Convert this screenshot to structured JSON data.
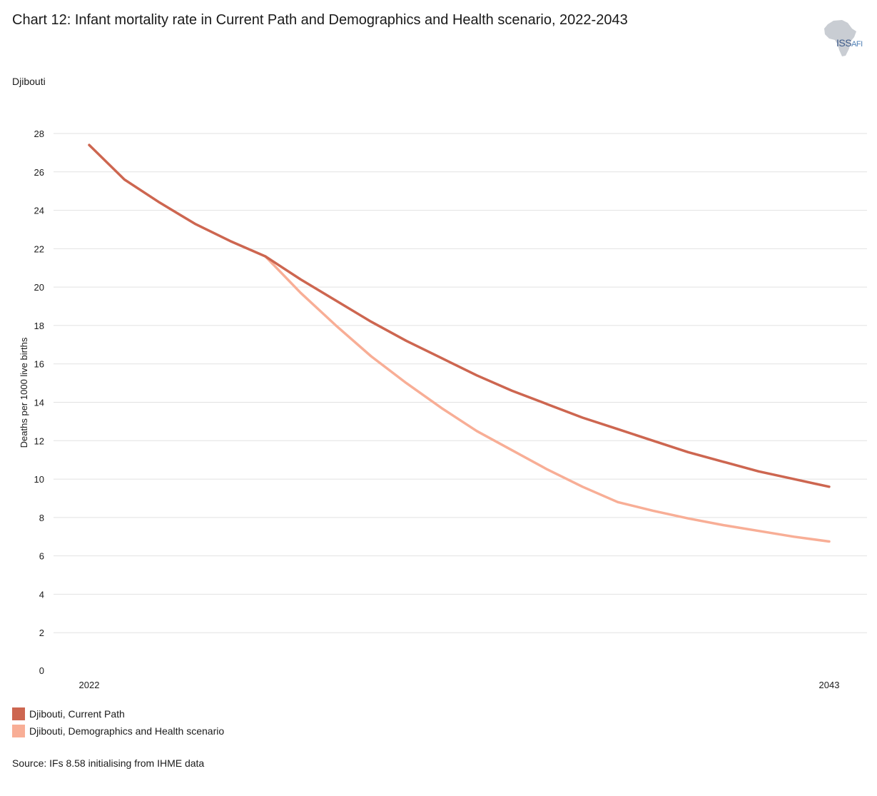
{
  "title": "Chart 12: Infant mortality rate in Current Path and Demographics and Health scenario, 2022-2043",
  "region_label": "Djibouti",
  "logo": {
    "icon": "africa-map-icon",
    "text": "ISS",
    "subtext": "AFI"
  },
  "source": "Source: IFs 8.58 initialising from IHME data",
  "colors": {
    "current_path": "#cd6650",
    "demographics_health": "#f8ae96",
    "grid": "#e2e2e2"
  },
  "chart_data": {
    "type": "line",
    "title": "Chart 12: Infant mortality rate in Current Path and Demographics and Health scenario, 2022-2043",
    "xlabel": "",
    "ylabel": "Deaths per 1000 live births",
    "ylim": [
      0,
      28
    ],
    "yticks": [
      0,
      2,
      4,
      6,
      8,
      10,
      12,
      14,
      16,
      18,
      20,
      22,
      24,
      26,
      28
    ],
    "xtick_labels": [
      "2022",
      "2043"
    ],
    "x": [
      2022,
      2023,
      2024,
      2025,
      2026,
      2027,
      2028,
      2029,
      2030,
      2031,
      2032,
      2033,
      2034,
      2035,
      2036,
      2037,
      2038,
      2039,
      2040,
      2041,
      2042,
      2043
    ],
    "grid": true,
    "legend_position": "bottom-left",
    "series": [
      {
        "name": "Djibouti, Current Path",
        "color": "#cd6650",
        "values": [
          27.4,
          25.6,
          24.4,
          23.3,
          22.4,
          21.6,
          20.4,
          19.3,
          18.2,
          17.2,
          16.3,
          15.4,
          14.6,
          13.9,
          13.2,
          12.6,
          12.0,
          11.4,
          10.9,
          10.4,
          10.0,
          9.6
        ]
      },
      {
        "name": "Djibouti, Demographics and Health scenario",
        "color": "#f8ae96",
        "values": [
          null,
          null,
          null,
          null,
          null,
          21.6,
          19.7,
          18.0,
          16.4,
          15.0,
          13.7,
          12.5,
          11.5,
          10.5,
          9.6,
          8.8,
          8.35,
          7.95,
          7.6,
          7.3,
          7.0,
          6.75
        ]
      }
    ]
  }
}
